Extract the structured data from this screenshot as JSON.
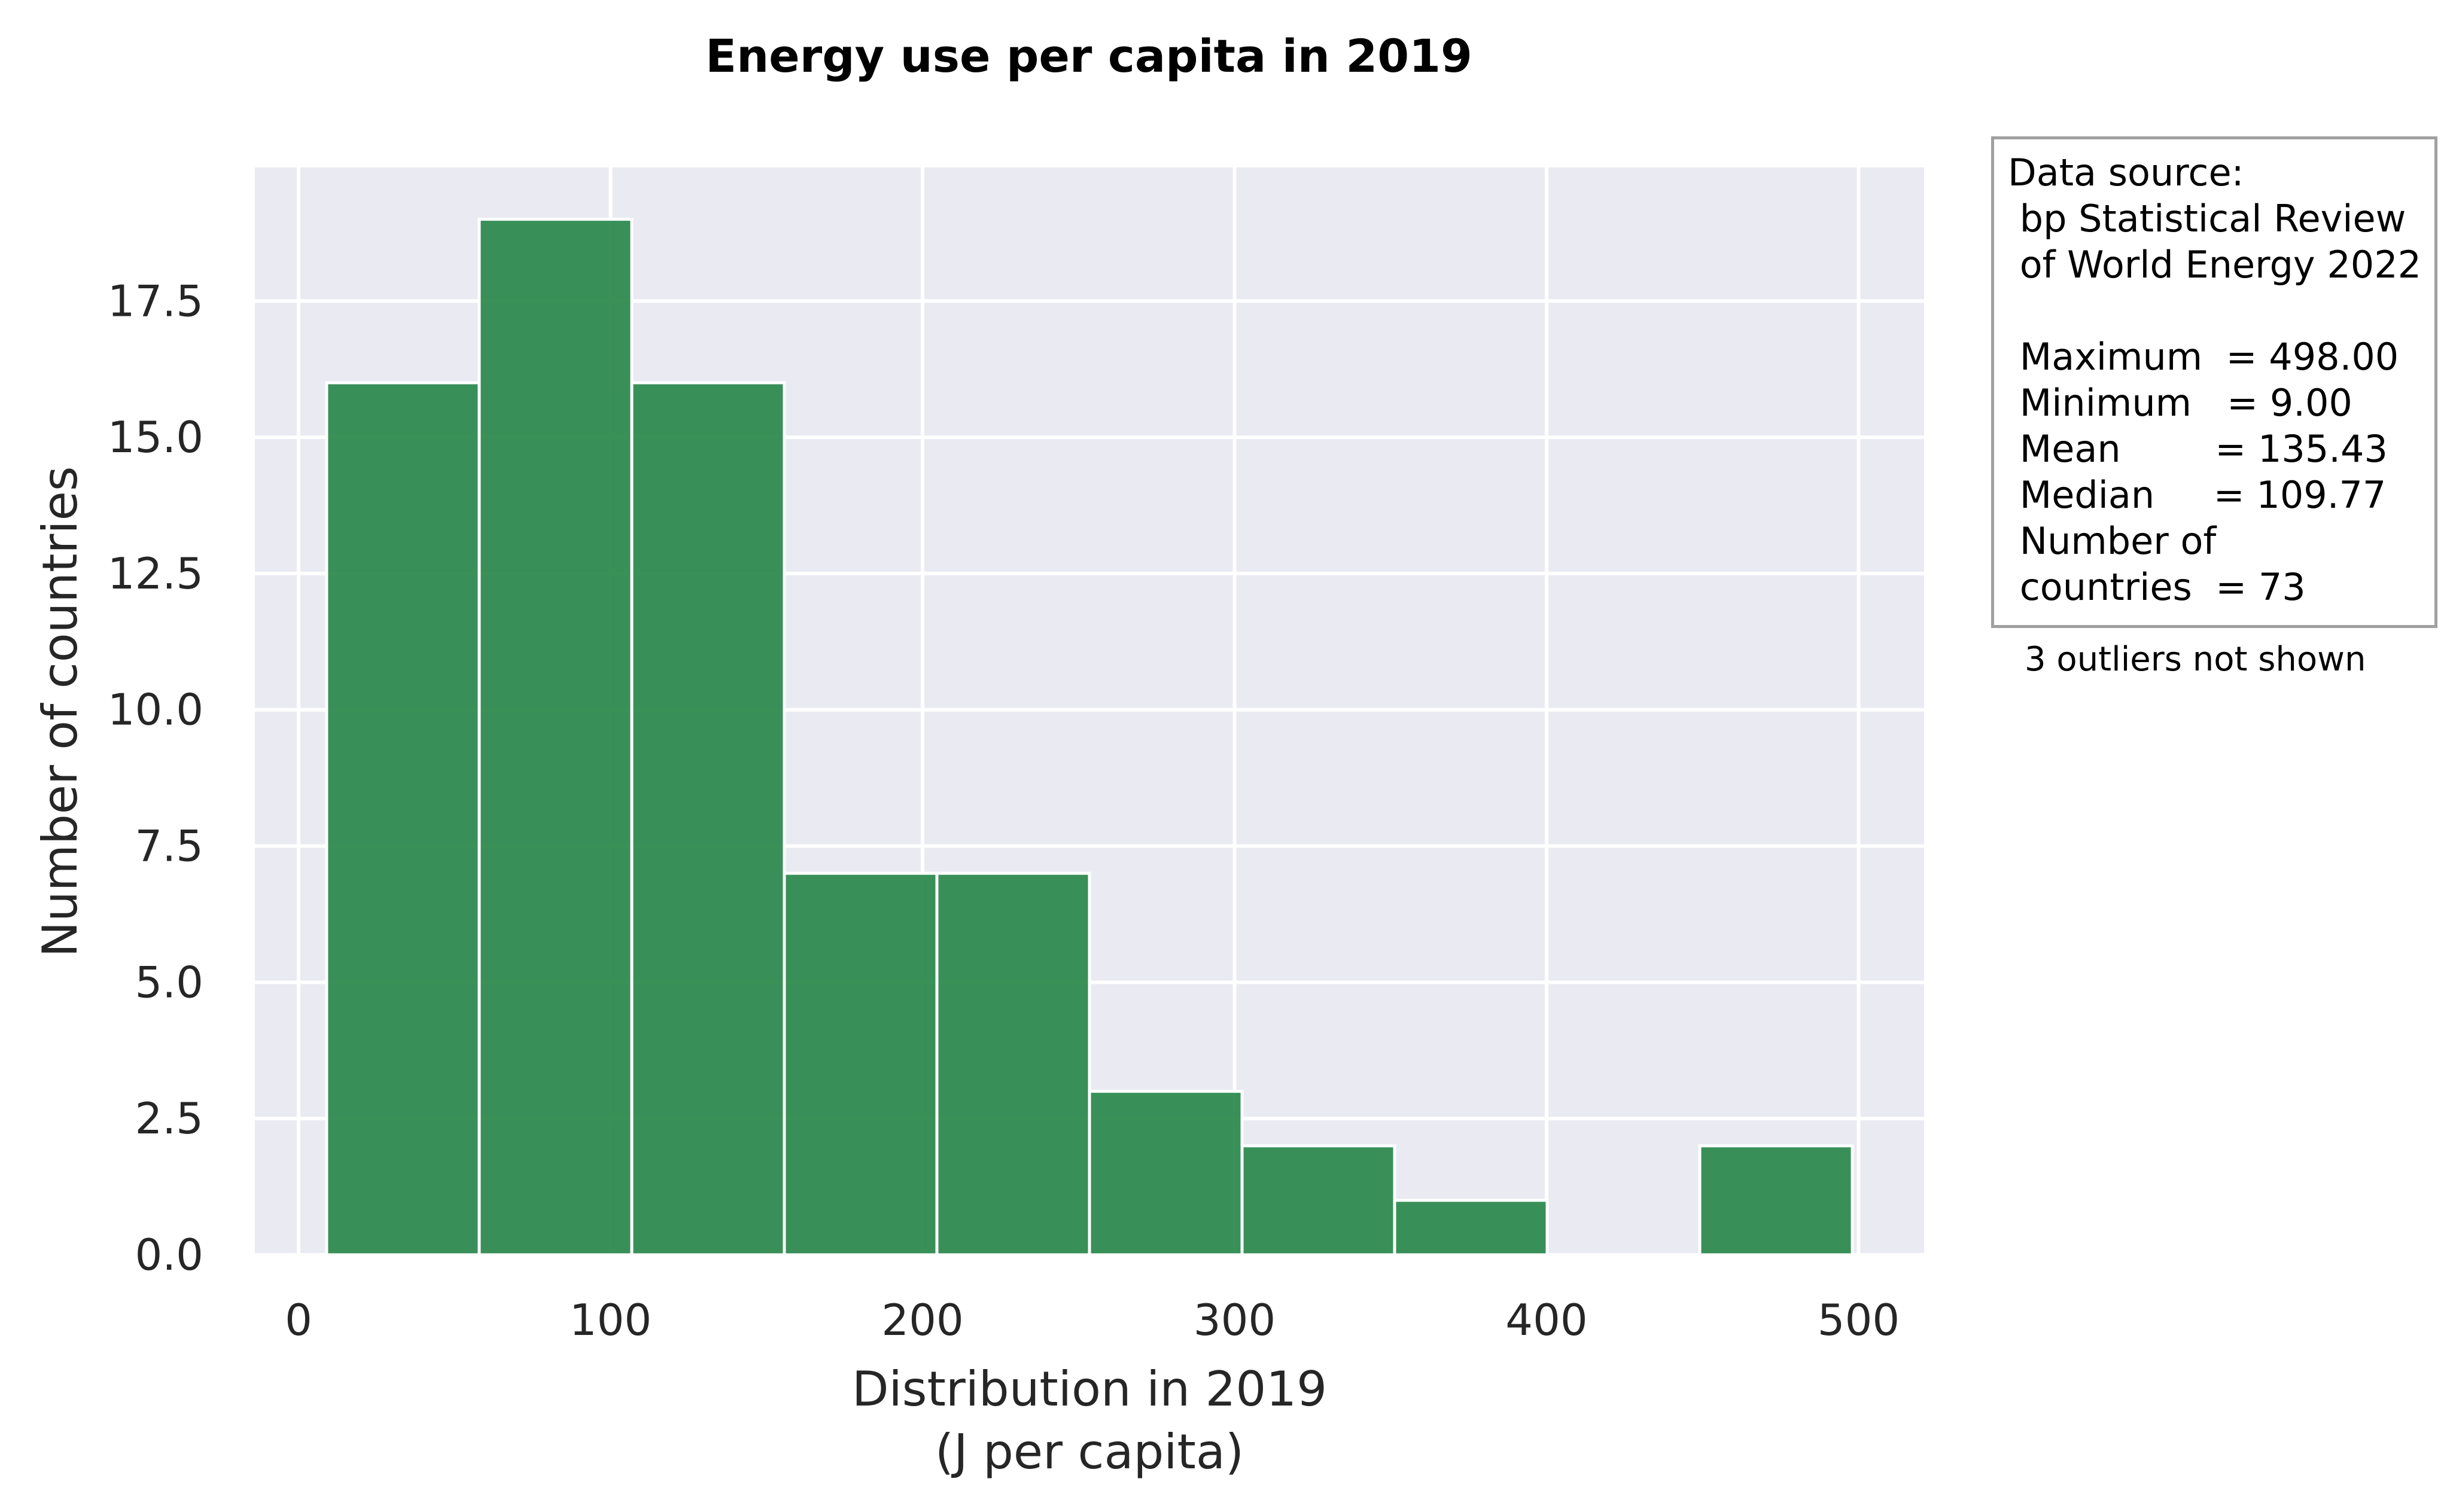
{
  "chart_data": {
    "type": "bar",
    "subtype": "histogram",
    "title": "Energy use per capita in 2019",
    "xlabel": "Distribution in 2019\n(J per capita)",
    "ylabel": "Number of countries",
    "bin_edges": [
      9,
      57.9,
      106.8,
      155.7,
      204.6,
      253.5,
      302.4,
      351.3,
      400.2,
      449.1,
      498
    ],
    "values": [
      16,
      19,
      16,
      7,
      7,
      3,
      2,
      1,
      0,
      2
    ],
    "xlim": [
      -14,
      521
    ],
    "ylim": [
      0,
      19.95
    ],
    "xticks": [
      0,
      100,
      200,
      300,
      400,
      500
    ],
    "xtick_labels": [
      "0",
      "100",
      "200",
      "300",
      "400",
      "500"
    ],
    "yticks": [
      0,
      2.5,
      5,
      7.5,
      10,
      12.5,
      15,
      17.5
    ],
    "ytick_labels": [
      "0.0",
      "2.5",
      "5.0",
      "7.5",
      "10.0",
      "12.5",
      "15.0",
      "17.5"
    ],
    "grid": true,
    "bar_color": "#2e8b4f",
    "plot_background": "#eaeaf2",
    "grid_color": "#ffffff"
  },
  "annotation": {
    "box_text": "Data source:\n bp Statistical Review\n of World Energy 2022\n\n Maximum  = 498.00\n Minimum   = 9.00\n Mean        = 135.43\n Median     = 109.77\n Number of\n countries  = 73",
    "note": "3 outliers not shown"
  }
}
